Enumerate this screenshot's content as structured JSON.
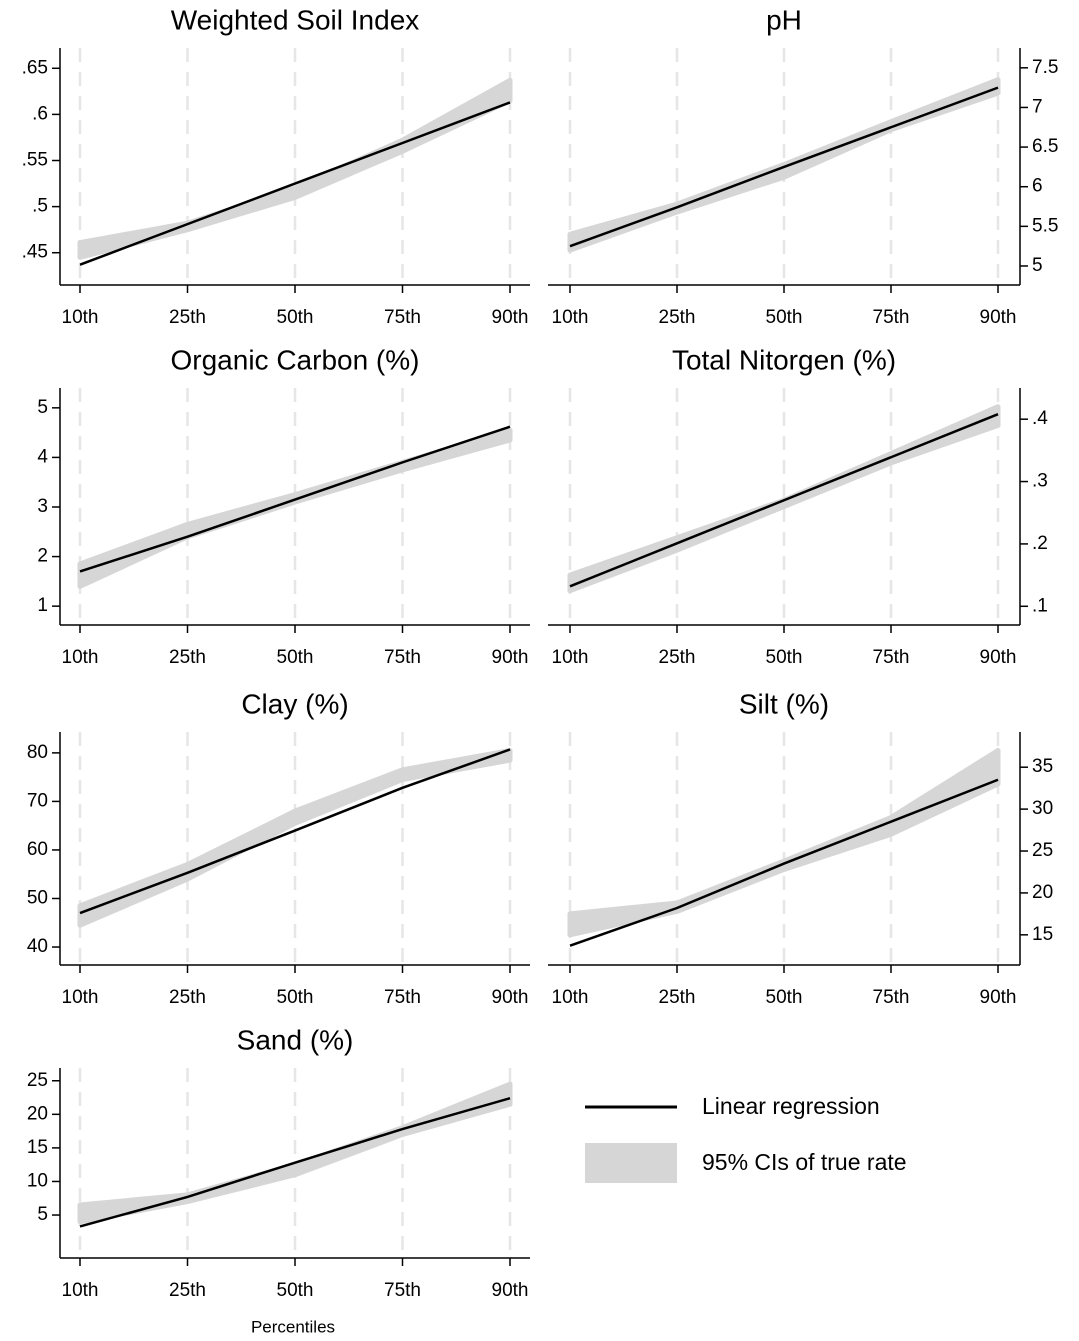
{
  "xlabel": "Percentiles",
  "xgrid": true,
  "legend": {
    "line": "Linear regression",
    "band": "95% CIs of true rate",
    "line_color": "#000000",
    "band_color": "#d6d6d6"
  },
  "chart_data": [
    {
      "type": "line",
      "title": "Weighted Soil Index",
      "yaxis": "left",
      "categories": [
        "10th",
        "25th",
        "50th",
        "75th",
        "90th"
      ],
      "values": [
        0.437,
        0.481,
        0.525,
        0.569,
        0.613
      ],
      "ci_lower": [
        0.445,
        0.475,
        0.51,
        0.56,
        0.615
      ],
      "ci_upper": [
        0.461,
        0.482,
        0.52,
        0.572,
        0.637
      ],
      "ylim": [
        0.415,
        0.672
      ],
      "yticks": [
        {
          "value": 0.45,
          "label": ".45"
        },
        {
          "value": 0.5,
          "label": ".5"
        },
        {
          "value": 0.55,
          "label": ".55"
        },
        {
          "value": 0.6,
          "label": ".6"
        },
        {
          "value": 0.65,
          "label": ".65"
        }
      ]
    },
    {
      "type": "line",
      "title": "pH",
      "yaxis": "right",
      "categories": [
        "10th",
        "25th",
        "50th",
        "75th",
        "90th"
      ],
      "values": [
        5.25,
        5.74,
        6.25,
        6.75,
        7.25
      ],
      "ci_lower": [
        5.2,
        5.68,
        6.12,
        6.72,
        7.18
      ],
      "ci_upper": [
        5.4,
        5.78,
        6.28,
        6.82,
        7.35
      ],
      "ylim": [
        4.76,
        7.75
      ],
      "yticks": [
        5,
        5.5,
        6,
        6.5,
        7,
        7.5
      ]
    },
    {
      "type": "line",
      "title": "Organic Carbon (%)",
      "yaxis": "left",
      "categories": [
        "10th",
        "25th",
        "50th",
        "75th",
        "90th"
      ],
      "values": [
        1.7,
        2.4,
        3.15,
        3.9,
        4.62
      ],
      "ci_lower": [
        1.4,
        2.4,
        3.1,
        3.75,
        4.35
      ],
      "ci_upper": [
        1.85,
        2.65,
        3.25,
        3.9,
        4.55
      ],
      "ylim": [
        0.62,
        5.4
      ],
      "yticks": [
        1,
        2,
        3,
        4,
        5
      ]
    },
    {
      "type": "line",
      "title": "Total Nitorgen (%)",
      "yaxis": "right",
      "categories": [
        "10th",
        "25th",
        "50th",
        "75th",
        "90th"
      ],
      "values": [
        0.132,
        0.201,
        0.27,
        0.339,
        0.408
      ],
      "ci_lower": [
        0.125,
        0.19,
        0.26,
        0.33,
        0.39
      ],
      "ci_upper": [
        0.15,
        0.21,
        0.27,
        0.345,
        0.42
      ],
      "ylim": [
        0.07,
        0.45
      ],
      "yticks": [
        {
          "value": 0.1,
          "label": ".1"
        },
        {
          "value": 0.2,
          "label": ".2"
        },
        {
          "value": 0.3,
          "label": ".3"
        },
        {
          "value": 0.4,
          "label": ".4"
        }
      ]
    },
    {
      "type": "line",
      "title": "Clay (%)",
      "yaxis": "left",
      "categories": [
        "10th",
        "25th",
        "50th",
        "75th",
        "90th"
      ],
      "values": [
        47,
        55.3,
        64,
        72.8,
        80.7
      ],
      "ci_lower": [
        44.5,
        54,
        65.5,
        74.5,
        78.5
      ],
      "ci_upper": [
        48.5,
        57,
        68,
        76.5,
        80.5
      ],
      "ylim": [
        36.3,
        84.3
      ],
      "yticks": [
        40,
        50,
        60,
        70,
        80
      ]
    },
    {
      "type": "line",
      "title": "Silt (%)",
      "yaxis": "right",
      "categories": [
        "10th",
        "25th",
        "50th",
        "75th",
        "90th"
      ],
      "values": [
        13.7,
        18.2,
        23.5,
        28.5,
        33.5
      ],
      "ci_lower": [
        15,
        17.8,
        22.8,
        27,
        33
      ],
      "ci_upper": [
        17.5,
        18.8,
        23.8,
        29,
        37
      ],
      "ylim": [
        11.4,
        39.2
      ],
      "yticks": [
        15,
        20,
        25,
        30,
        35
      ]
    },
    {
      "type": "line",
      "title": "Sand (%)",
      "yaxis": "left",
      "categories": [
        "10th",
        "25th",
        "50th",
        "75th",
        "90th"
      ],
      "values": [
        3.3,
        7.7,
        12.8,
        17.8,
        22.4
      ],
      "ci_lower": [
        4,
        7,
        11,
        17,
        21.5
      ],
      "ci_upper": [
        6.5,
        8,
        12.5,
        18,
        24.5
      ],
      "ylim": [
        -1.4,
        26.9
      ],
      "yticks": [
        5,
        10,
        15,
        20,
        25
      ]
    }
  ]
}
